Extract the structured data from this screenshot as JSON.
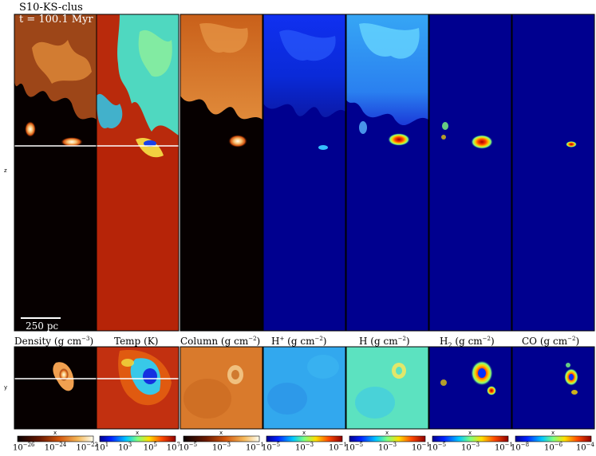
{
  "header": {
    "simulation": "S10-KS-clus",
    "time": "t = 100.1 Myr"
  },
  "axes": {
    "z": "z",
    "y": "y",
    "x": "x"
  },
  "scale_bar": {
    "label": "250 pc",
    "length_pc": 250,
    "color": "#ffffff"
  },
  "chart_data": {
    "type": "heatmap",
    "layout": "7 panels, edge-on slice (x-z) above face-on slice (x-y), one colorbar each",
    "panels": [
      {
        "id": "density",
        "title_text": "Density",
        "title_unit": "(g cm",
        "title_exp": "−3",
        "title_close": ")",
        "colormap": "hot",
        "ticks": [
          {
            "base": "10",
            "exp": "−26"
          },
          {
            "base": "10",
            "exp": "−24"
          },
          {
            "base": "10",
            "exp": "−22"
          }
        ]
      },
      {
        "id": "temperature",
        "title_text": "Temp",
        "title_unit": "(K)",
        "title_exp": "",
        "title_close": "",
        "colormap": "jet",
        "ticks": [
          {
            "base": "10",
            "exp": "1"
          },
          {
            "base": "10",
            "exp": "3"
          },
          {
            "base": "10",
            "exp": "5"
          },
          {
            "base": "10",
            "exp": "7"
          }
        ]
      },
      {
        "id": "column",
        "title_text": "Column",
        "title_unit": "(g cm",
        "title_exp": "−2",
        "title_close": ")",
        "colormap": "hot",
        "ticks": [
          {
            "base": "10",
            "exp": "−5"
          },
          {
            "base": "10",
            "exp": "−3"
          },
          {
            "base": "10",
            "exp": "−1"
          }
        ]
      },
      {
        "id": "h-plus",
        "title_text": "H",
        "title_sup": "+",
        "title_unit": "(g cm",
        "title_exp": "−2",
        "title_close": ")",
        "colormap": "jet",
        "ticks": [
          {
            "base": "10",
            "exp": "−5"
          },
          {
            "base": "10",
            "exp": "−3"
          },
          {
            "base": "10",
            "exp": "−1"
          }
        ]
      },
      {
        "id": "h",
        "title_text": "H",
        "title_unit": "(g cm",
        "title_exp": "−2",
        "title_close": ")",
        "colormap": "jet",
        "ticks": [
          {
            "base": "10",
            "exp": "−5"
          },
          {
            "base": "10",
            "exp": "−3"
          },
          {
            "base": "10",
            "exp": "−1"
          }
        ]
      },
      {
        "id": "h2",
        "title_text": "H",
        "title_sub": "2",
        "title_unit": "(g cm",
        "title_exp": "−2",
        "title_close": ")",
        "colormap": "jet",
        "ticks": [
          {
            "base": "10",
            "exp": "−5"
          },
          {
            "base": "10",
            "exp": "−3"
          },
          {
            "base": "10",
            "exp": "−1"
          }
        ]
      },
      {
        "id": "co",
        "title_text": "CO",
        "title_unit": "(g cm",
        "title_exp": "−2",
        "title_close": ")",
        "colormap": "jet",
        "ticks": [
          {
            "base": "10",
            "exp": "−8"
          },
          {
            "base": "10",
            "exp": "−6"
          },
          {
            "base": "10",
            "exp": "−4"
          }
        ]
      }
    ]
  }
}
